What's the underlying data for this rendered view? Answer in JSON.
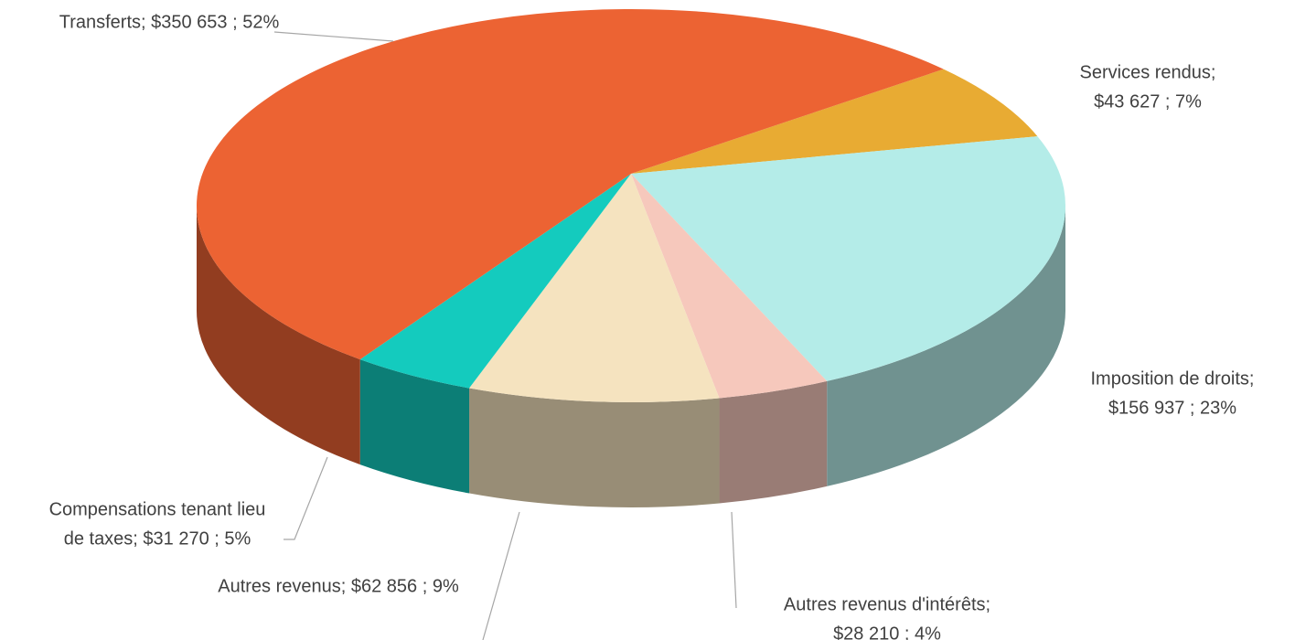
{
  "chart_data": {
    "type": "pie3d",
    "categories": [
      "Services rendus",
      "Imposition de droits",
      "Autres revenus d'intérêts",
      "Autres revenus",
      "Compensations tenant lieu de taxes",
      "Transferts"
    ],
    "values": [
      43627,
      156937,
      28210,
      62856,
      31270,
      350653
    ],
    "value_labels": [
      [
        "Services rendus;",
        "$43 627 ; 7%"
      ],
      [
        "Imposition de droits;",
        "$156 937 ; 23%"
      ],
      [
        "Autres revenus d'intérêts;",
        "$28 210 ; 4%"
      ],
      [
        "Autres revenus; $62 856 ; 9%"
      ],
      [
        "Compensations tenant lieu",
        "de taxes; $31 270 ; 5%"
      ],
      [
        "Transferts; $350 653 ; 52%"
      ]
    ],
    "colors": [
      "#e8ab33",
      "#b4ece8",
      "#f6c8bc",
      "#f5e3bf",
      "#14cbbe",
      "#ec6333"
    ]
  }
}
